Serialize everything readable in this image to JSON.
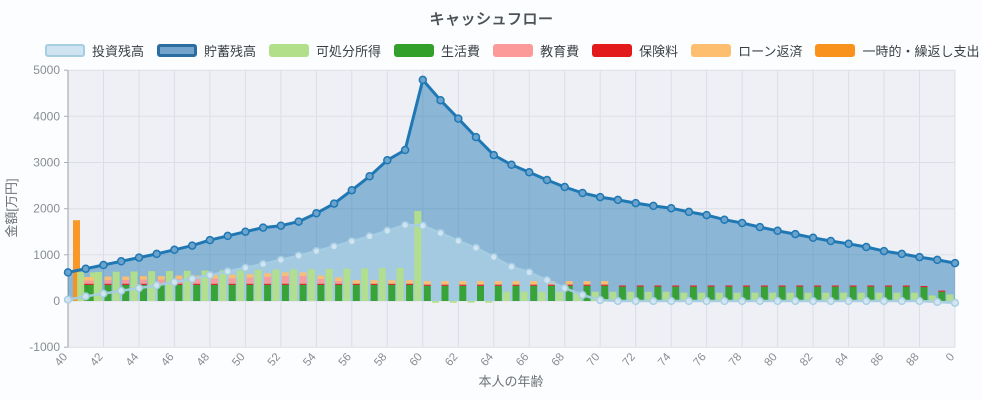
{
  "title": "キャッシュフロー",
  "legend": {
    "items": [
      {
        "label": "投資残高",
        "swatch_fill": "#cfe3f0",
        "swatch_border": "#a6cee3",
        "border_w": 2
      },
      {
        "label": "貯蓄残高",
        "swatch_fill": "#74a3cc",
        "swatch_border": "#2c6da1",
        "border_w": 3
      },
      {
        "label": "可処分所得",
        "swatch_fill": "#b2df8a",
        "swatch_border": "#b2df8a",
        "border_w": 0
      },
      {
        "label": "生活費",
        "swatch_fill": "#33a02c",
        "swatch_border": "#33a02c",
        "border_w": 0
      },
      {
        "label": "教育費",
        "swatch_fill": "#fb9a99",
        "swatch_border": "#fb9a99",
        "border_w": 0
      },
      {
        "label": "保険料",
        "swatch_fill": "#e31a1c",
        "swatch_border": "#e31a1c",
        "border_w": 0
      },
      {
        "label": "ローン返済",
        "swatch_fill": "#fdbf6f",
        "swatch_border": "#fdbf6f",
        "border_w": 0
      },
      {
        "label": "一時的・繰返し支出",
        "swatch_fill": "#f8921d",
        "swatch_border": "#f8921d",
        "border_w": 0
      }
    ]
  },
  "chart_data": {
    "type": "area",
    "title": "キャッシュフロー",
    "xlabel": "本人の年齢",
    "ylabel": "金額[万円]",
    "ylim": [
      -1000,
      5000
    ],
    "ytick_labels": [
      "5000",
      "4000",
      "3000",
      "2000",
      "1000",
      "0",
      "-1000"
    ],
    "xtick_labels": [
      "40",
      "42",
      "44",
      "46",
      "48",
      "50",
      "52",
      "54",
      "56",
      "58",
      "60",
      "62",
      "64",
      "66",
      "68",
      "70",
      "72",
      "74",
      "76",
      "78",
      "80",
      "82",
      "84",
      "86",
      "88",
      "0"
    ],
    "x_start_age": 40,
    "x_end_age": 90,
    "grid": true,
    "legend_position": "top-left",
    "plot_bg": "#eef0f5",
    "grid_color": "#dbdfe5",
    "axis_color": "#a9afb7",
    "tick_text_color": "#888d94",
    "axis_label_color": "#6d7278",
    "series": [
      {
        "name": "投資残高",
        "kind": "area-line",
        "color": "#a6cee3",
        "fill": "rgba(170,207,228,0.80)",
        "marker_fill": "#d3e6f3",
        "values": [
          30,
          100,
          160,
          220,
          280,
          340,
          410,
          480,
          560,
          640,
          720,
          800,
          890,
          980,
          1080,
          1180,
          1290,
          1400,
          1520,
          1645,
          1630,
          1470,
          1300,
          1150,
          950,
          740,
          620,
          450,
          280,
          130,
          20,
          0,
          0,
          0,
          0,
          0,
          0,
          0,
          0,
          0,
          0,
          0,
          0,
          0,
          0,
          0,
          0,
          0,
          0,
          -20,
          -40
        ]
      },
      {
        "name": "貯蓄残高",
        "kind": "area-line",
        "color": "#1f78b4",
        "fill": "rgba(31,120,180,0.48)",
        "marker_fill": "#6ba3cc",
        "values": [
          620,
          700,
          780,
          860,
          940,
          1020,
          1110,
          1200,
          1320,
          1410,
          1500,
          1590,
          1630,
          1720,
          1900,
          2110,
          2400,
          2700,
          3050,
          3270,
          4790,
          4350,
          3950,
          3550,
          3160,
          2950,
          2790,
          2620,
          2470,
          2340,
          2250,
          2190,
          2120,
          2060,
          2010,
          1930,
          1860,
          1760,
          1690,
          1600,
          1520,
          1450,
          1370,
          1300,
          1240,
          1170,
          1080,
          1020,
          950,
          890,
          820
        ]
      },
      {
        "name": "可処分所得",
        "kind": "bar",
        "color": "#b2df8a",
        "values": [
          620,
          625,
          630,
          635,
          640,
          645,
          650,
          655,
          660,
          665,
          670,
          675,
          680,
          685,
          690,
          695,
          700,
          705,
          710,
          715,
          1950,
          -40,
          -40,
          -40,
          -40,
          200,
          200,
          200,
          200,
          200,
          200,
          200,
          200,
          200,
          200,
          180,
          180,
          180,
          180,
          180,
          180,
          180,
          180,
          180,
          180,
          180,
          180,
          180,
          180,
          120,
          140
        ]
      },
      {
        "name": "生活費",
        "kind": "bar-stack",
        "color": "#33a02c",
        "values": [
          350,
          350,
          350,
          350,
          350,
          350,
          350,
          350,
          350,
          350,
          350,
          350,
          350,
          350,
          350,
          350,
          350,
          350,
          350,
          350,
          330,
          330,
          330,
          330,
          330,
          330,
          330,
          330,
          330,
          330,
          330,
          310,
          310,
          310,
          310,
          310,
          310,
          310,
          310,
          310,
          310,
          310,
          310,
          310,
          310,
          310,
          310,
          310,
          300,
          200,
          0
        ]
      },
      {
        "name": "教育費",
        "kind": "bar-stack",
        "color": "#fb9a99",
        "values": [
          70,
          70,
          80,
          80,
          90,
          90,
          100,
          100,
          110,
          120,
          130,
          150,
          170,
          170,
          100,
          60,
          0,
          0,
          0,
          0,
          0,
          0,
          0,
          0,
          0,
          0,
          0,
          0,
          0,
          0,
          0,
          0,
          0,
          0,
          0,
          0,
          0,
          0,
          0,
          0,
          0,
          0,
          0,
          0,
          0,
          0,
          0,
          0,
          0,
          0,
          0
        ]
      },
      {
        "name": "保険料",
        "kind": "bar-stack",
        "color": "#e31a1c",
        "values": [
          25,
          25,
          25,
          25,
          25,
          25,
          25,
          25,
          25,
          25,
          25,
          25,
          25,
          25,
          25,
          25,
          25,
          25,
          25,
          25,
          25,
          25,
          25,
          25,
          25,
          25,
          25,
          25,
          25,
          25,
          25,
          25,
          25,
          25,
          25,
          25,
          25,
          25,
          25,
          25,
          25,
          25,
          25,
          25,
          25,
          25,
          25,
          25,
          25,
          25,
          0
        ]
      },
      {
        "name": "ローン返済",
        "kind": "bar-stack",
        "color": "#fdbf6f",
        "values": [
          75,
          75,
          75,
          75,
          75,
          75,
          75,
          75,
          75,
          75,
          75,
          75,
          75,
          75,
          75,
          75,
          75,
          75,
          75,
          75,
          75,
          75,
          75,
          75,
          75,
          75,
          75,
          75,
          75,
          75,
          75,
          0,
          0,
          0,
          0,
          0,
          0,
          0,
          0,
          0,
          0,
          0,
          0,
          0,
          0,
          0,
          0,
          0,
          0,
          0,
          0
        ]
      },
      {
        "name": "一時的・繰返し支出",
        "kind": "bar",
        "color": "#f8921d",
        "values": [
          1750,
          0,
          0,
          0,
          0,
          0,
          0,
          0,
          0,
          0,
          0,
          0,
          0,
          0,
          0,
          0,
          0,
          0,
          0,
          0,
          0,
          0,
          0,
          0,
          0,
          0,
          0,
          0,
          0,
          0,
          0,
          0,
          0,
          0,
          0,
          0,
          0,
          0,
          0,
          0,
          0,
          0,
          0,
          0,
          0,
          0,
          0,
          0,
          0,
          0,
          0
        ]
      }
    ]
  }
}
